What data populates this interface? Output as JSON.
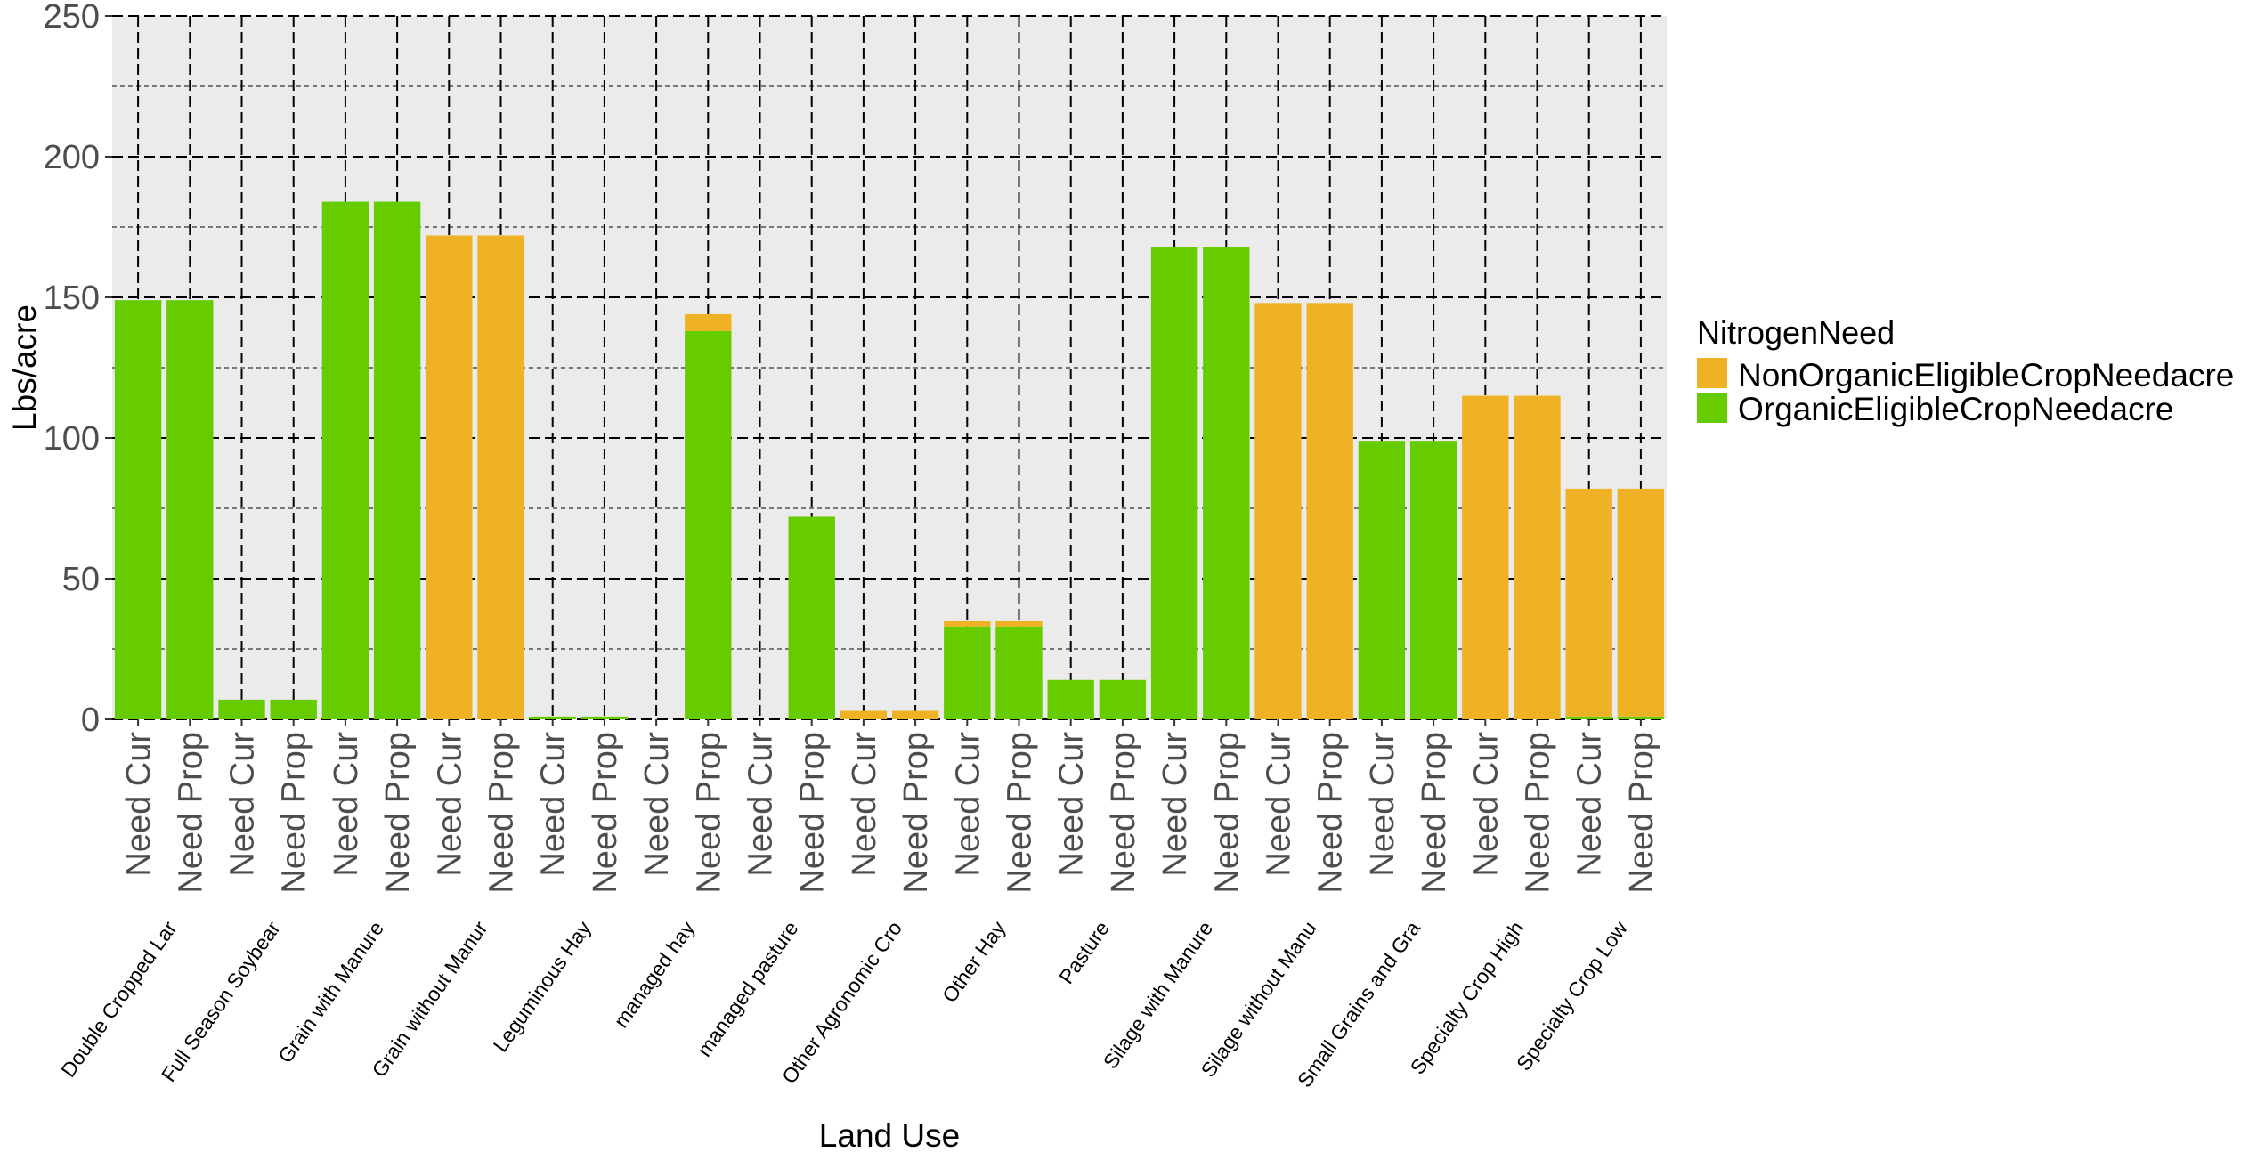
{
  "chart_data": {
    "type": "bar",
    "stacked": true,
    "title": "",
    "xlabel": "Land Use",
    "ylabel": "Lbs/acre",
    "ylim": [
      0,
      250
    ],
    "yticks": [
      0,
      50,
      100,
      150,
      200,
      250
    ],
    "grid": true,
    "legend": {
      "title": "NitrogenNeed",
      "position": "right",
      "items": [
        "NonOrganicEligibleCropNeedacre",
        "OrganicEligibleCropNeedacre"
      ]
    },
    "categories": [
      "Need Cur",
      "Need Prop",
      "Need Cur",
      "Need Prop",
      "Need Cur",
      "Need Prop",
      "Need Cur",
      "Need Prop",
      "Need Cur",
      "Need Prop",
      "Need Cur",
      "Need Prop",
      "Need Cur",
      "Need Prop",
      "Need Cur",
      "Need Prop",
      "Need Cur",
      "Need Prop",
      "Need Cur",
      "Need Prop",
      "Need Cur",
      "Need Prop",
      "Need Cur",
      "Need Prop",
      "Need Cur",
      "Need Prop",
      "Need Cur",
      "Need Prop",
      "Need Cur",
      "Need Prop"
    ],
    "groups": [
      "Double Cropped Lar",
      "Full Season Soybear",
      "Grain with Manure",
      "Grain without Manur",
      "Leguminous Hay",
      "managed hay",
      "managed pasture",
      "Other Agronomic Cro",
      "Other Hay",
      "Pasture",
      "Silage with Manure",
      "Silage without Manu",
      "Small Grains and Gra",
      "Specialty Crop High",
      "Specialty Crop Low"
    ],
    "series": [
      {
        "name": "OrganicEligibleCropNeedacre",
        "color": "#66cc00",
        "values": [
          149,
          149,
          7,
          7,
          184,
          184,
          0,
          0,
          1,
          1,
          0,
          138,
          0,
          72,
          0,
          0,
          33,
          33,
          14,
          14,
          168,
          168,
          0,
          0,
          99,
          99,
          0,
          0,
          1,
          1
        ]
      },
      {
        "name": "NonOrganicEligibleCropNeedacre",
        "color": "#efb225",
        "values": [
          0,
          0,
          0,
          0,
          0,
          0,
          172,
          172,
          0,
          0,
          0,
          6,
          0,
          0,
          3,
          3,
          2,
          2,
          0,
          0,
          0,
          0,
          148,
          148,
          0,
          0,
          115,
          115,
          81,
          81
        ]
      }
    ]
  }
}
